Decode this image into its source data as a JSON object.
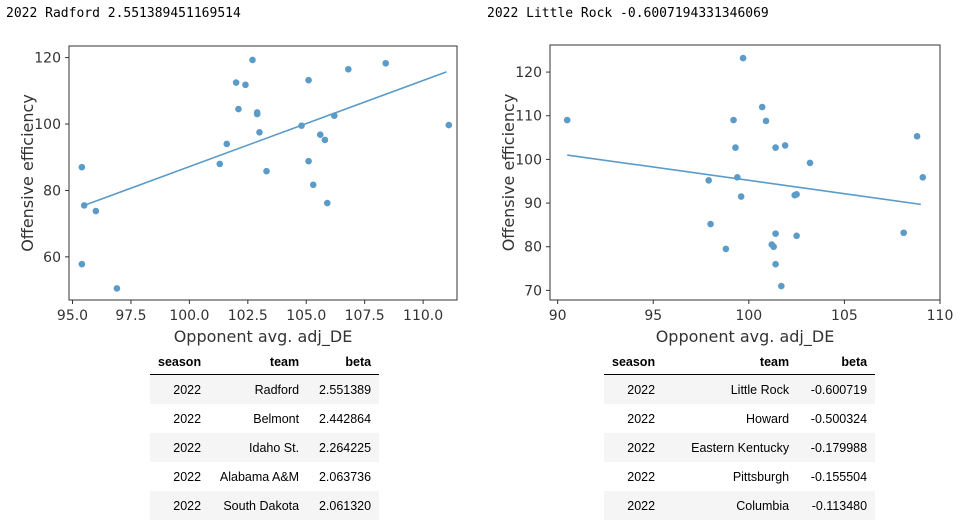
{
  "titles": {
    "left": "2022 Radford 2.551389451169514",
    "right": "2022 Little Rock -0.6007194331346069"
  },
  "colors": {
    "marker": "#5b9bc8",
    "fit_line": "#5b9bc8",
    "axes": "#333333"
  },
  "chart_data": [
    {
      "type": "scatter",
      "title": "2022 Radford 2.551389451169514",
      "xlabel": "Opponent avg. adj_DE",
      "ylabel": "Offensive efficiency",
      "xlim": [
        94.85,
        111.45
      ],
      "ylim": [
        47.0,
        123.5
      ],
      "xticks": [
        "95.0",
        "97.5",
        "100.0",
        "102.5",
        "105.0",
        "107.5",
        "110.0"
      ],
      "xtick_values": [
        95.0,
        97.5,
        100.0,
        102.5,
        105.0,
        107.5,
        110.0
      ],
      "yticks": [
        "60",
        "80",
        "100",
        "120"
      ],
      "ytick_values": [
        60,
        80,
        100,
        120
      ],
      "grid": false,
      "points": [
        {
          "x": 95.4,
          "y": 87.0
        },
        {
          "x": 95.5,
          "y": 75.5
        },
        {
          "x": 95.4,
          "y": 57.8
        },
        {
          "x": 96.0,
          "y": 73.8
        },
        {
          "x": 96.9,
          "y": 50.5
        },
        {
          "x": 101.3,
          "y": 88.0
        },
        {
          "x": 101.6,
          "y": 94.0
        },
        {
          "x": 102.0,
          "y": 112.5
        },
        {
          "x": 102.1,
          "y": 104.5
        },
        {
          "x": 102.4,
          "y": 111.8
        },
        {
          "x": 102.7,
          "y": 119.3
        },
        {
          "x": 102.9,
          "y": 103.5
        },
        {
          "x": 102.9,
          "y": 103.0
        },
        {
          "x": 103.0,
          "y": 97.5
        },
        {
          "x": 103.3,
          "y": 85.8
        },
        {
          "x": 104.8,
          "y": 99.5
        },
        {
          "x": 105.1,
          "y": 113.2
        },
        {
          "x": 105.1,
          "y": 88.8
        },
        {
          "x": 105.3,
          "y": 81.7
        },
        {
          "x": 105.6,
          "y": 96.8
        },
        {
          "x": 105.8,
          "y": 95.2
        },
        {
          "x": 105.9,
          "y": 76.2
        },
        {
          "x": 106.2,
          "y": 102.5
        },
        {
          "x": 106.8,
          "y": 116.5
        },
        {
          "x": 108.4,
          "y": 118.3
        },
        {
          "x": 111.1,
          "y": 99.7
        }
      ],
      "fit_line": {
        "x": [
          95.5,
          111.0
        ],
        "y": [
          75.5,
          115.7
        ]
      }
    },
    {
      "type": "scatter",
      "title": "2022 Little Rock -0.6007194331346069",
      "xlabel": "Opponent avg. adj_DE",
      "ylabel": "Offensive efficiency",
      "xlim": [
        89.6,
        110.0
      ],
      "ylim": [
        67.8,
        126.2
      ],
      "xticks": [
        "90",
        "95",
        "100",
        "105",
        "110"
      ],
      "xtick_values": [
        90,
        95,
        100,
        105,
        110
      ],
      "yticks": [
        "70",
        "80",
        "90",
        "100",
        "110",
        "120"
      ],
      "ytick_values": [
        70,
        80,
        90,
        100,
        110,
        120
      ],
      "grid": false,
      "points": [
        {
          "x": 90.5,
          "y": 109.0
        },
        {
          "x": 97.9,
          "y": 95.2
        },
        {
          "x": 98.0,
          "y": 85.2
        },
        {
          "x": 98.8,
          "y": 79.5
        },
        {
          "x": 99.2,
          "y": 109.0
        },
        {
          "x": 99.3,
          "y": 102.7
        },
        {
          "x": 99.4,
          "y": 95.9
        },
        {
          "x": 99.6,
          "y": 91.5
        },
        {
          "x": 99.7,
          "y": 123.2
        },
        {
          "x": 100.7,
          "y": 112.0
        },
        {
          "x": 100.9,
          "y": 108.8
        },
        {
          "x": 101.2,
          "y": 80.5
        },
        {
          "x": 101.3,
          "y": 80.0
        },
        {
          "x": 101.4,
          "y": 102.7
        },
        {
          "x": 101.4,
          "y": 76.0
        },
        {
          "x": 101.4,
          "y": 83.0
        },
        {
          "x": 101.7,
          "y": 71.0
        },
        {
          "x": 101.9,
          "y": 103.2
        },
        {
          "x": 102.4,
          "y": 91.8
        },
        {
          "x": 102.5,
          "y": 92.0
        },
        {
          "x": 102.5,
          "y": 82.5
        },
        {
          "x": 103.2,
          "y": 99.2
        },
        {
          "x": 108.1,
          "y": 83.2
        },
        {
          "x": 108.8,
          "y": 105.3
        },
        {
          "x": 109.1,
          "y": 95.9
        }
      ],
      "fit_line": {
        "x": [
          90.5,
          109.0
        ],
        "y": [
          101.0,
          89.7
        ]
      }
    }
  ],
  "tables": {
    "left": {
      "columns": [
        "season",
        "team",
        "beta"
      ],
      "rows": [
        [
          "2022",
          "Radford",
          "2.551389"
        ],
        [
          "2022",
          "Belmont",
          "2.442864"
        ],
        [
          "2022",
          "Idaho St.",
          "2.264225"
        ],
        [
          "2022",
          "Alabama A&M",
          "2.063736"
        ],
        [
          "2022",
          "South Dakota",
          "2.061320"
        ]
      ]
    },
    "right": {
      "columns": [
        "season",
        "team",
        "beta"
      ],
      "rows": [
        [
          "2022",
          "Little Rock",
          "-0.600719"
        ],
        [
          "2022",
          "Howard",
          "-0.500324"
        ],
        [
          "2022",
          "Eastern Kentucky",
          "-0.179988"
        ],
        [
          "2022",
          "Pittsburgh",
          "-0.155504"
        ],
        [
          "2022",
          "Columbia",
          "-0.113480"
        ]
      ]
    }
  }
}
